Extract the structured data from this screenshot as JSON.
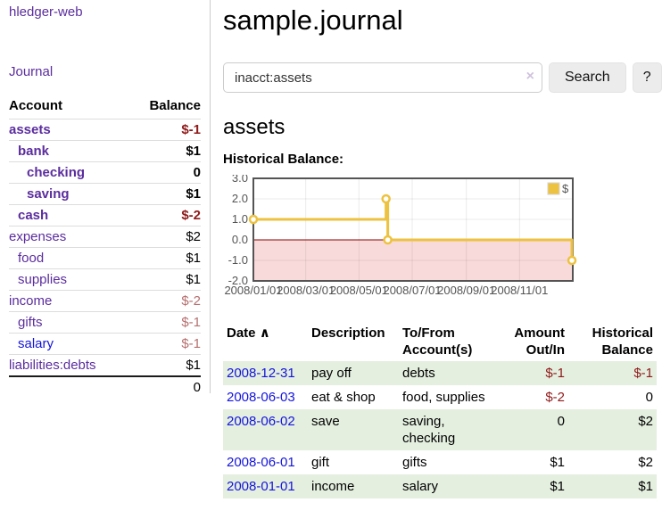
{
  "colors": {
    "link_purple": "#5b2d9e",
    "link_blue": "#1414dd",
    "negative_strong": "#8f1a1a",
    "negative_soft": "#b66f6f",
    "row_shade_green": "#e4efdf",
    "chart_series_gold": "#edc240",
    "chart_negative_region_pink": "#f9dada",
    "chart_zero_line_red": "#8b0000"
  },
  "app": {
    "brand": "hledger-web",
    "nav_journal": "Journal"
  },
  "sidebar": {
    "accounts_header": {
      "account": "Account",
      "balance": "Balance"
    },
    "accounts": [
      {
        "name": "assets",
        "indent": 0,
        "bold": true,
        "balance": "$-1",
        "negative": true
      },
      {
        "name": "bank",
        "indent": 1,
        "bold": true,
        "balance": "$1"
      },
      {
        "name": "checking",
        "indent": 2,
        "bold": true,
        "balance": "0"
      },
      {
        "name": "saving",
        "indent": 2,
        "bold": true,
        "balance": "$1"
      },
      {
        "name": "cash",
        "indent": 1,
        "bold": true,
        "balance": "$-2",
        "negative": true
      },
      {
        "name": "expenses",
        "indent": 0,
        "bold": false,
        "balance": "$2"
      },
      {
        "name": "food",
        "indent": 1,
        "bold": false,
        "balance": "$1"
      },
      {
        "name": "supplies",
        "indent": 1,
        "bold": false,
        "balance": "$1"
      },
      {
        "name": "income",
        "indent": 0,
        "bold": false,
        "balance": "$-2",
        "negative": true
      },
      {
        "name": "gifts",
        "indent": 1,
        "bold": false,
        "balance": "$-1",
        "negative": true
      },
      {
        "name": "salary",
        "indent": 1,
        "bold": false,
        "balance": "$-1",
        "negative": true,
        "blue": true
      },
      {
        "name": "liabilities:debts",
        "indent": 0,
        "bold": false,
        "balance": "$1"
      }
    ],
    "total": "0"
  },
  "header": {
    "title": "sample.journal"
  },
  "search": {
    "query": "inacct:assets",
    "clear_icon": "×",
    "button_label": "Search",
    "help_label": "?"
  },
  "account_page": {
    "heading": "assets",
    "chart_label": "Historical Balance:"
  },
  "chart_data": {
    "type": "line",
    "step": true,
    "title": "Historical Balance:",
    "series": [
      {
        "name": "$",
        "points": [
          [
            "2008-01-01",
            1.0
          ],
          [
            "2008-06-01",
            2.0
          ],
          [
            "2008-06-03",
            0.0
          ],
          [
            "2008-12-31",
            -1.0
          ]
        ]
      }
    ],
    "x_range": [
      "2008-01-01",
      "2009-01-01"
    ],
    "ylim": [
      -2.0,
      3.0
    ],
    "x_ticks": [
      "2008/01/01",
      "2008/03/01",
      "2008/05/01",
      "2008/07/01",
      "2008/09/01",
      "2008/11/01"
    ],
    "y_ticks": [
      3.0,
      2.0,
      1.0,
      0.0,
      -1.0,
      -2.0
    ],
    "grid": true,
    "legend": {
      "label": "$",
      "position": "top-right"
    }
  },
  "register": {
    "columns": [
      "Date",
      "Description",
      "To/From Account(s)",
      "Amount Out/In",
      "Historical Balance"
    ],
    "sort_indicator": "∧",
    "rows": [
      {
        "date": "2008-12-31",
        "description": "pay off",
        "accounts": "debts",
        "amount": "$-1",
        "amount_negative": true,
        "balance": "$-1",
        "balance_negative": true,
        "shaded": true
      },
      {
        "date": "2008-06-03",
        "description": "eat & shop",
        "accounts": "food, supplies",
        "amount": "$-2",
        "amount_negative": true,
        "balance": "0",
        "balance_negative": false,
        "shaded": false
      },
      {
        "date": "2008-06-02",
        "description": "save",
        "accounts": "saving, checking",
        "amount": "0",
        "amount_negative": false,
        "balance": "$2",
        "balance_negative": false,
        "shaded": true
      },
      {
        "date": "2008-06-01",
        "description": "gift",
        "accounts": "gifts",
        "amount": "$1",
        "amount_negative": false,
        "balance": "$2",
        "balance_negative": false,
        "shaded": false
      },
      {
        "date": "2008-01-01",
        "description": "income",
        "accounts": "salary",
        "amount": "$1",
        "amount_negative": false,
        "balance": "$1",
        "balance_negative": false,
        "shaded": true
      }
    ]
  }
}
